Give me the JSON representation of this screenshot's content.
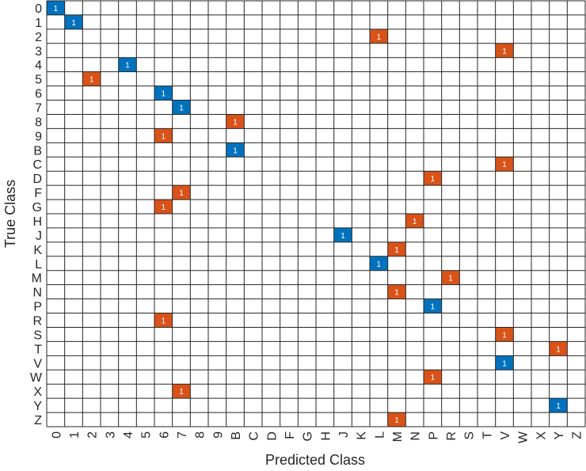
{
  "chart_data": {
    "type": "heatmap",
    "title": "",
    "xlabel": "Predicted Class",
    "ylabel": "True Class",
    "true_classes": [
      "0",
      "1",
      "2",
      "3",
      "4",
      "5",
      "6",
      "7",
      "8",
      "9",
      "B",
      "C",
      "D",
      "F",
      "G",
      "H",
      "J",
      "K",
      "L",
      "M",
      "N",
      "P",
      "R",
      "S",
      "T",
      "V",
      "W",
      "X",
      "Y",
      "Z"
    ],
    "predicted_classes": [
      "0",
      "1",
      "2",
      "3",
      "4",
      "5",
      "6",
      "7",
      "8",
      "9",
      "B",
      "C",
      "D",
      "F",
      "G",
      "H",
      "J",
      "K",
      "L",
      "M",
      "N",
      "P",
      "R",
      "S",
      "T",
      "V",
      "W",
      "X",
      "Y",
      "Z"
    ],
    "cells": [
      {
        "true": "0",
        "predicted": "0",
        "value": 1
      },
      {
        "true": "1",
        "predicted": "1",
        "value": 1
      },
      {
        "true": "2",
        "predicted": "L",
        "value": 1
      },
      {
        "true": "3",
        "predicted": "V",
        "value": 1
      },
      {
        "true": "4",
        "predicted": "4",
        "value": 1
      },
      {
        "true": "5",
        "predicted": "2",
        "value": 1
      },
      {
        "true": "6",
        "predicted": "6",
        "value": 1
      },
      {
        "true": "7",
        "predicted": "7",
        "value": 1
      },
      {
        "true": "8",
        "predicted": "B",
        "value": 1
      },
      {
        "true": "9",
        "predicted": "6",
        "value": 1
      },
      {
        "true": "B",
        "predicted": "B",
        "value": 1
      },
      {
        "true": "C",
        "predicted": "V",
        "value": 1
      },
      {
        "true": "D",
        "predicted": "P",
        "value": 1
      },
      {
        "true": "F",
        "predicted": "7",
        "value": 1
      },
      {
        "true": "G",
        "predicted": "6",
        "value": 1
      },
      {
        "true": "H",
        "predicted": "N",
        "value": 1
      },
      {
        "true": "J",
        "predicted": "J",
        "value": 1
      },
      {
        "true": "K",
        "predicted": "M",
        "value": 1
      },
      {
        "true": "L",
        "predicted": "L",
        "value": 1
      },
      {
        "true": "M",
        "predicted": "R",
        "value": 1
      },
      {
        "true": "N",
        "predicted": "M",
        "value": 1
      },
      {
        "true": "P",
        "predicted": "P",
        "value": 1
      },
      {
        "true": "R",
        "predicted": "6",
        "value": 1
      },
      {
        "true": "S",
        "predicted": "V",
        "value": 1
      },
      {
        "true": "T",
        "predicted": "Y",
        "value": 1
      },
      {
        "true": "V",
        "predicted": "V",
        "value": 1
      },
      {
        "true": "W",
        "predicted": "P",
        "value": 1
      },
      {
        "true": "X",
        "predicted": "7",
        "value": 1
      },
      {
        "true": "Y",
        "predicted": "Y",
        "value": 1
      },
      {
        "true": "Z",
        "predicted": "M",
        "value": 1
      }
    ],
    "colors": {
      "correct": "#0072BD",
      "incorrect": "#D95319",
      "grid": "#262626",
      "background": "#ffffff",
      "text": "#262626"
    },
    "grid": true,
    "legend": "none"
  }
}
